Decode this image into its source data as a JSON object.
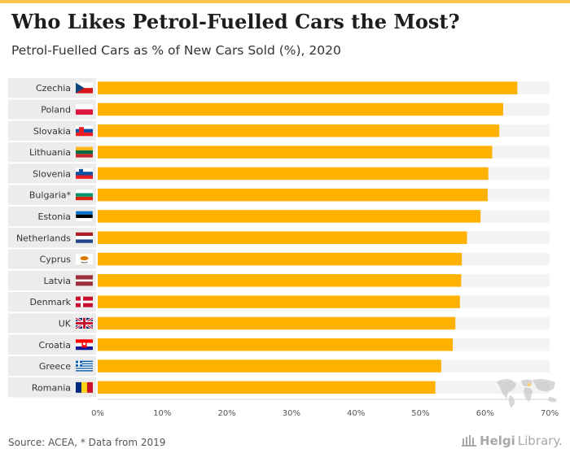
{
  "header": {
    "title": "Who Likes Petrol-Fuelled Cars the Most?",
    "subtitle": "Petrol-Fuelled Cars as % of New Cars Sold (%), 2020"
  },
  "footer": {
    "source": "Source: ACEA, * Data from 2019",
    "brand_bold": "Helgi",
    "brand_light": "Library."
  },
  "colors": {
    "bar": "#ffb100",
    "track": "#f4f4f4",
    "label_bg": "#ececec",
    "axis_text": "#555555"
  },
  "chart_data": {
    "type": "bar",
    "orientation": "horizontal",
    "categories": [
      "Czechia",
      "Poland",
      "Slovakia",
      "Lithuania",
      "Slovenia",
      "Bulgaria*",
      "Estonia",
      "Netherlands",
      "Cyprus",
      "Latvia",
      "Denmark",
      "UK",
      "Croatia",
      "Greece",
      "Romania"
    ],
    "flag_icons": [
      "czech-flag-icon",
      "poland-flag-icon",
      "slovakia-flag-icon",
      "lithuania-flag-icon",
      "slovenia-flag-icon",
      "bulgaria-flag-icon",
      "estonia-flag-icon",
      "netherlands-flag-icon",
      "cyprus-flag-icon",
      "latvia-flag-icon",
      "denmark-flag-icon",
      "uk-flag-icon",
      "croatia-flag-icon",
      "greece-flag-icon",
      "romania-flag-icon"
    ],
    "values": [
      65.0,
      62.8,
      62.2,
      61.1,
      60.5,
      60.4,
      59.3,
      57.2,
      56.4,
      56.3,
      56.1,
      55.4,
      55.0,
      53.2,
      52.3
    ],
    "xlim": [
      0,
      70
    ],
    "ticks": [
      0,
      10,
      20,
      30,
      40,
      50,
      60,
      70
    ],
    "tick_labels": [
      "0%",
      "10%",
      "20%",
      "30%",
      "40%",
      "50%",
      "60%",
      "70%"
    ],
    "grid": false
  }
}
